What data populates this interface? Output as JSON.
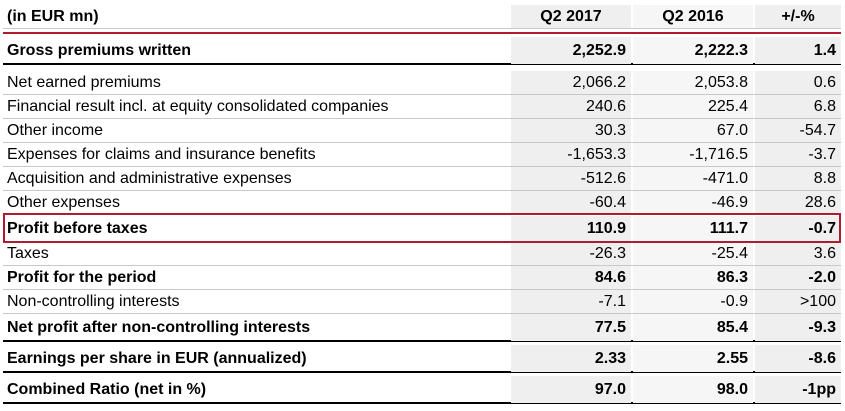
{
  "table": {
    "headers": [
      "(in EUR mn)",
      "Q2 2017",
      "Q2 2016",
      "+/-%"
    ],
    "rows": [
      {
        "label": "Gross premiums written",
        "q2_2017": "2,252.9",
        "q2_2016": "2,222.3",
        "change": "1.4",
        "bold": true
      },
      {
        "label": "Net earned premiums",
        "q2_2017": "2,066.2",
        "q2_2016": "2,053.8",
        "change": "0.6",
        "bold": false
      },
      {
        "label": "Financial result incl. at equity consolidated companies",
        "q2_2017": "240.6",
        "q2_2016": "225.4",
        "change": "6.8",
        "bold": false
      },
      {
        "label": "Other income",
        "q2_2017": "30.3",
        "q2_2016": "67.0",
        "change": "-54.7",
        "bold": false
      },
      {
        "label": "Expenses for claims and insurance benefits",
        "q2_2017": "-1,653.3",
        "q2_2016": "-1,716.5",
        "change": "-3.7",
        "bold": false
      },
      {
        "label": "Acquisition and administrative expenses",
        "q2_2017": "-512.6",
        "q2_2016": "-471.0",
        "change": "8.8",
        "bold": false
      },
      {
        "label": "Other expenses",
        "q2_2017": "-60.4",
        "q2_2016": "-46.9",
        "change": "28.6",
        "bold": false
      },
      {
        "label": "Profit before taxes",
        "q2_2017": "110.9",
        "q2_2016": "111.7",
        "change": "-0.7",
        "bold": true
      },
      {
        "label": "Taxes",
        "q2_2017": "-26.3",
        "q2_2016": "-25.4",
        "change": "3.6",
        "bold": false
      },
      {
        "label": "Profit for the period",
        "q2_2017": "84.6",
        "q2_2016": "86.3",
        "change": "-2.0",
        "bold": true
      },
      {
        "label": "Non-controlling interests",
        "q2_2017": "-7.1",
        "q2_2016": "-0.9",
        "change": ">100",
        "bold": false
      },
      {
        "label": "Net profit after non-controlling interests",
        "q2_2017": "77.5",
        "q2_2016": "85.4",
        "change": "-9.3",
        "bold": true
      },
      {
        "label": "Earnings per share in EUR (annualized)",
        "q2_2017": "2.33",
        "q2_2016": "2.55",
        "change": "-8.6",
        "bold": true
      },
      {
        "label": "Combined Ratio (net in %)",
        "q2_2017": "97.0",
        "q2_2016": "98.0",
        "change": "-1pp",
        "bold": true
      }
    ],
    "accent_color": "#b01c2e"
  }
}
